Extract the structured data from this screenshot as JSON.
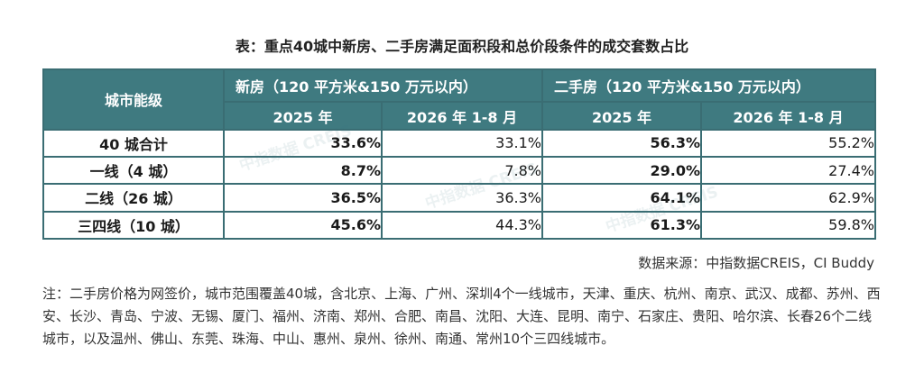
{
  "title": "表：重点40城中新房、二手房满足面积段和总价段条件的成交套数占比",
  "table": {
    "row_header": "城市能级",
    "groups": [
      "新房（120 平方米&150 万元以内）",
      "二手房（120 平方米&150 万元以内）"
    ],
    "subheaders": [
      "2025 年",
      "2026 年 1-8 月",
      "2025 年",
      "2026 年 1-8 月"
    ],
    "rows": [
      {
        "label": "40 城合计",
        "values": [
          "33.6%",
          "33.1%",
          "56.3%",
          "55.2%"
        ]
      },
      {
        "label": "一线（4 城）",
        "values": [
          "8.7%",
          "7.8%",
          "29.0%",
          "27.4%"
        ]
      },
      {
        "label": "二线（26 城）",
        "values": [
          "36.5%",
          "36.3%",
          "64.1%",
          "62.9%"
        ]
      },
      {
        "label": "三四线（10 城）",
        "values": [
          "45.6%",
          "44.3%",
          "61.3%",
          "59.8%"
        ]
      }
    ]
  },
  "watermark": "中指数据 CREIS",
  "source": "数据来源：中指数据CREIS，CI Buddy",
  "note": "注：二手房价格为网签价，城市范围覆盖40城，含北京、上海、广州、深圳4个一线城市，天津、重庆、杭州、南京、武汉、成都、苏州、西安、长沙、青岛、宁波、无锡、厦门、福州、济南、郑州、合肥、南昌、沈阳、大连、昆明、南宁、石家庄、贵阳、哈尔滨、长春26个二线城市，以及温州、佛山、东莞、珠海、中山、惠州、泉州、徐州、南通、常州10个三四线城市。"
}
